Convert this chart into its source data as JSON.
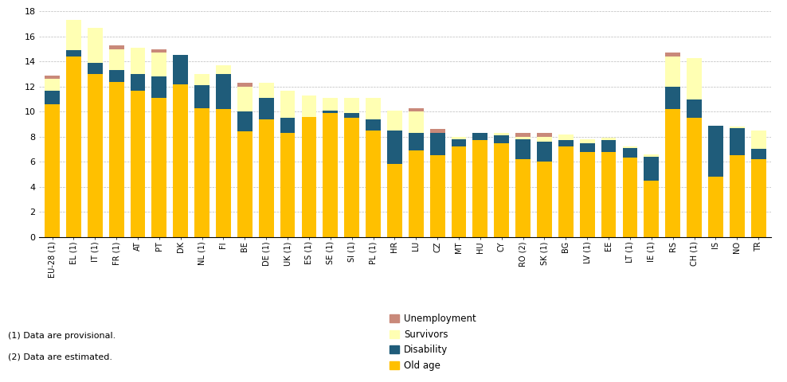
{
  "categories": [
    "EU-28 (1)",
    "EL (1)",
    "IT (1)",
    "FR (1)",
    "AT",
    "PT",
    "DK",
    "NL (1)",
    "FI",
    "BE",
    "DE (1)",
    "UK (1)",
    "ES (1)",
    "SE (1)",
    "SI (1)",
    "PL (1)",
    "HR",
    "LU",
    "CZ",
    "MT",
    "HU",
    "CY",
    "RO (2)",
    "SK (1)",
    "BG",
    "LV (1)",
    "EE",
    "LT (1)",
    "IE (1)",
    "RS",
    "CH (1)",
    "IS",
    "NO",
    "TR"
  ],
  "old_age": [
    10.6,
    14.4,
    13.0,
    12.4,
    11.7,
    11.1,
    12.2,
    10.3,
    10.2,
    8.4,
    9.4,
    8.3,
    9.6,
    9.9,
    9.5,
    8.5,
    5.8,
    6.9,
    6.5,
    7.2,
    7.7,
    7.5,
    6.2,
    6.0,
    7.2,
    6.8,
    6.8,
    6.3,
    4.5,
    10.2,
    9.5,
    4.8,
    6.5,
    6.2
  ],
  "disability": [
    1.1,
    0.5,
    0.9,
    0.9,
    1.3,
    1.7,
    2.3,
    1.8,
    2.8,
    1.6,
    1.7,
    1.2,
    0.0,
    0.2,
    0.4,
    0.9,
    2.7,
    1.4,
    1.8,
    0.6,
    0.6,
    0.6,
    1.6,
    1.6,
    0.5,
    0.7,
    0.9,
    0.8,
    1.9,
    1.8,
    1.5,
    4.1,
    2.2,
    0.8
  ],
  "survivors": [
    0.9,
    2.4,
    2.8,
    1.7,
    2.1,
    1.9,
    0.0,
    0.9,
    0.7,
    2.0,
    1.2,
    2.2,
    1.7,
    1.0,
    1.2,
    1.7,
    1.6,
    1.7,
    0.0,
    0.2,
    0.0,
    0.2,
    0.2,
    0.4,
    0.5,
    0.3,
    0.2,
    0.1,
    0.2,
    2.4,
    3.3,
    0.0,
    0.1,
    1.5
  ],
  "unemployment": [
    0.3,
    0.0,
    0.0,
    0.3,
    0.0,
    0.3,
    0.0,
    0.0,
    0.0,
    0.3,
    0.0,
    0.0,
    0.0,
    0.0,
    0.0,
    0.0,
    0.0,
    0.3,
    0.3,
    0.0,
    0.0,
    0.0,
    0.3,
    0.3,
    0.0,
    0.0,
    0.0,
    0.0,
    0.0,
    0.3,
    0.0,
    0.0,
    0.0,
    0.0
  ],
  "color_old_age": "#FFC000",
  "color_disability": "#1F5C7A",
  "color_survivors": "#FFFFB3",
  "color_unemployment": "#C9897A",
  "ylim": [
    0,
    18
  ],
  "yticks": [
    0,
    2,
    4,
    6,
    8,
    10,
    12,
    14,
    16,
    18
  ],
  "legend_labels": [
    "Unemployment",
    "Survivors",
    "Disability",
    "Old age"
  ],
  "footnote1": "(1) Data are provisional.",
  "footnote2": "(2) Data are estimated.",
  "background_color": "#FFFFFF",
  "grid_color": "#BBBBBB"
}
